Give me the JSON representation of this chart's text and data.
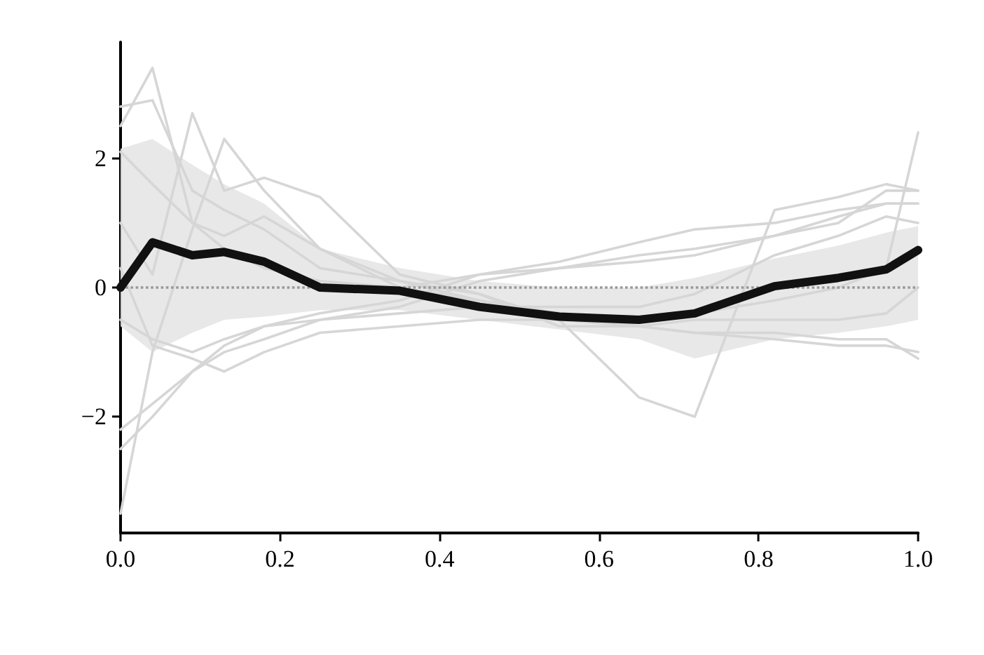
{
  "chart_data": {
    "type": "line",
    "xlim": [
      0,
      1
    ],
    "ylim": [
      -3.8,
      3.8
    ],
    "xticks": [
      {
        "value": 0,
        "label": "0.0"
      },
      {
        "value": 0.2,
        "label": "0.2"
      },
      {
        "value": 0.4,
        "label": "0.4"
      },
      {
        "value": 0.6,
        "label": "0.6"
      },
      {
        "value": 0.8,
        "label": "0.8"
      },
      {
        "value": 1,
        "label": "1.0"
      }
    ],
    "yticks": [
      {
        "value": -2,
        "label": "−2"
      },
      0,
      2
    ],
    "grid": false,
    "marker": "none",
    "line_style": "solid",
    "ref_lines": [
      {
        "axis": "y",
        "value": 0,
        "color": "#999999",
        "line_style": "dotted"
      }
    ],
    "x": [
      0,
      0.04,
      0.09,
      0.13,
      0.18,
      0.25,
      0.35,
      0.45,
      0.55,
      0.65,
      0.72,
      0.82,
      0.9,
      0.96,
      1.0
    ],
    "series": [
      {
        "color": "#d6d6d6",
        "values": [
          2.5,
          3.4,
          1.0,
          0.6,
          0.3,
          0.1,
          0.0,
          -0.2,
          -0.4,
          -0.5,
          -0.4,
          -0.2,
          0.0,
          0.3,
          2.4
        ]
      },
      {
        "color": "#d6d6d6",
        "values": [
          2.8,
          2.9,
          1.5,
          1.2,
          0.9,
          0.3,
          0.1,
          -0.1,
          -0.5,
          -1.7,
          -2.0,
          1.2,
          1.4,
          1.6,
          1.5
        ]
      },
      {
        "color": "#d6d6d6",
        "values": [
          -3.5,
          -1.0,
          0.9,
          2.3,
          1.5,
          0.6,
          0.1,
          -0.2,
          -0.4,
          -0.6,
          -0.7,
          -0.7,
          -0.8,
          -0.8,
          -1.1
        ]
      },
      {
        "color": "#d6d6d6",
        "values": [
          1.0,
          0.2,
          2.7,
          1.5,
          1.7,
          1.4,
          0.2,
          -0.1,
          -0.6,
          -0.6,
          -0.5,
          -0.5,
          -0.5,
          -0.4,
          0.0
        ]
      },
      {
        "color": "#d6d6d6",
        "values": [
          -2.5,
          -2.0,
          -1.3,
          -1.0,
          -0.8,
          -0.5,
          -0.4,
          -0.3,
          -0.3,
          -0.3,
          -0.1,
          0.5,
          0.8,
          1.1,
          1.0
        ]
      },
      {
        "color": "#d6d6d6",
        "values": [
          -0.5,
          -0.8,
          -1.0,
          -0.8,
          -0.6,
          -0.5,
          -0.3,
          0.1,
          0.3,
          0.4,
          0.5,
          0.8,
          1.1,
          1.3,
          1.3
        ]
      },
      {
        "color": "#d6d6d6",
        "values": [
          0.3,
          -0.9,
          -1.1,
          -1.3,
          -1.0,
          -0.7,
          -0.6,
          -0.5,
          -0.5,
          -0.6,
          -0.7,
          -0.8,
          -0.9,
          -0.9,
          -1.0
        ]
      },
      {
        "color": "#d6d6d6",
        "values": [
          2.1,
          1.6,
          1.0,
          0.8,
          1.1,
          0.6,
          0.0,
          0.2,
          0.3,
          0.5,
          0.6,
          0.8,
          1.0,
          1.5,
          1.5
        ]
      },
      {
        "color": "#d6d6d6",
        "values": [
          -2.2,
          -1.8,
          -1.3,
          -0.9,
          -0.6,
          -0.4,
          -0.2,
          0.2,
          0.4,
          0.7,
          0.9,
          1.0,
          1.2,
          1.3,
          1.3
        ]
      },
      {
        "color": "#111111",
        "values": [
          0,
          0.7,
          0.5,
          0.55,
          0.4,
          0,
          -0.05,
          -0.3,
          -0.45,
          -0.5,
          -0.4,
          0.02,
          0.15,
          0.28,
          0.58
        ],
        "lower": [
          -0.6,
          -1.0,
          -0.7,
          -0.5,
          -0.45,
          -0.35,
          -0.35,
          -0.5,
          -0.65,
          -0.8,
          -1.1,
          -0.8,
          -0.7,
          -0.6,
          -0.5
        ],
        "upper": [
          2.15,
          2.3,
          1.9,
          1.6,
          1.3,
          0.6,
          0.3,
          0.1,
          0.0,
          0.0,
          0.15,
          0.45,
          0.65,
          0.85,
          0.95
        ]
      }
    ]
  }
}
